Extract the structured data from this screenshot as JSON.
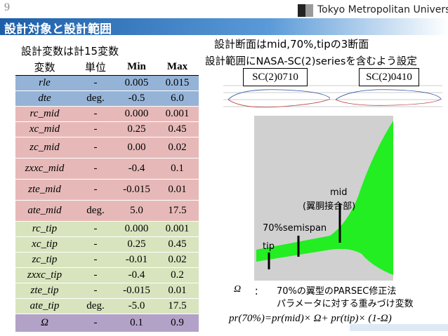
{
  "header": {
    "page_number": "9",
    "logo": "Tokyo Metropolitan University",
    "title": "設計対象と設計範囲"
  },
  "left": {
    "caption": "設計変数は計15変数",
    "table": {
      "columns": [
        "変数",
        "単位",
        "Min",
        "Max"
      ],
      "rows": [
        [
          "rle",
          "-",
          "0.005",
          "0.015"
        ],
        [
          "dte",
          "deg.",
          "-0.5",
          "6.0"
        ],
        [
          "rc_mid",
          "-",
          "0.000",
          "0.001"
        ],
        [
          "xc_mid",
          "-",
          "0.25",
          "0.45"
        ],
        [
          "zc_mid",
          "-",
          "0.00",
          "0.02"
        ],
        [
          "zxxc_mid",
          "-",
          "-0.4",
          "0.1"
        ],
        [
          "zte_mid",
          "-",
          "-0.015",
          "0.01"
        ],
        [
          "ate_mid",
          "deg.",
          "5.0",
          "17.5"
        ],
        [
          "rc_tip",
          "-",
          "0.000",
          "0.001"
        ],
        [
          "xc_tip",
          "-",
          "0.25",
          "0.45"
        ],
        [
          "zc_tip",
          "-",
          "-0.01",
          "0.02"
        ],
        [
          "zxxc_tip",
          "-",
          "-0.4",
          "0.2"
        ],
        [
          "zte_tip",
          "-",
          "-0.015",
          "0.01"
        ],
        [
          "ate_tip",
          "deg.",
          "-5.0",
          "17.5"
        ],
        [
          "Ω",
          "-",
          "0.1",
          "0.9"
        ]
      ]
    }
  },
  "right": {
    "line1": "設計断面はmid,70%,tipの3断面",
    "line2": "設計範囲にNASA-SC(2)seriesを含むよう設定",
    "airfoil_labels": [
      "SC(2)0710",
      "SC(2)0410"
    ],
    "wing_labels": {
      "mid": "mid",
      "mid_note": "(翼胴接合部)",
      "semispan": "70%semispan",
      "tip": "tip"
    },
    "omega_symbol": "Ω",
    "omega_colon": "：",
    "omega_desc1": "70%の翼型のPARSEC修正法",
    "omega_desc2": "パラメータに対する重みづけ変数",
    "formula": "pr(70%)=pr(mid)× Ω+ pr(tip)× (1-Ω)"
  }
}
